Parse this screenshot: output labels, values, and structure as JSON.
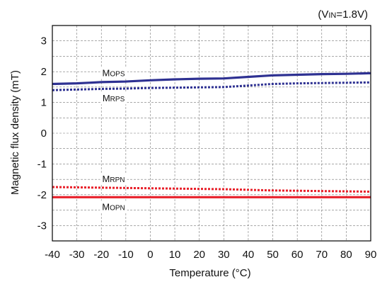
{
  "chart_data": {
    "type": "line",
    "condition": {
      "open": "(V",
      "sub": "IN",
      "close": "=1.8V)"
    },
    "xlabel": "Temperature (°C)",
    "ylabel": "Magnetic flux density (mT)",
    "xlim": [
      -40,
      90
    ],
    "ylim": [
      -3.5,
      3.5
    ],
    "xticks": [
      -40,
      -30,
      -20,
      -10,
      0,
      10,
      20,
      30,
      40,
      50,
      60,
      70,
      80,
      90
    ],
    "yticks": [
      3,
      2,
      1,
      0,
      -1,
      -2,
      -3
    ],
    "grid": true,
    "colors": {
      "blue": "#2e3192",
      "red": "#e8202a",
      "grid": "#777777"
    },
    "series": [
      {
        "name_main": "M",
        "name_sub": "OPS",
        "color": "#2e3192",
        "style": "solid",
        "label_side": "above",
        "label_x": -15,
        "x": [
          -40,
          -30,
          -20,
          -10,
          0,
          10,
          20,
          30,
          40,
          50,
          60,
          70,
          80,
          90
        ],
        "y": [
          1.6,
          1.62,
          1.66,
          1.68,
          1.72,
          1.75,
          1.77,
          1.78,
          1.83,
          1.88,
          1.9,
          1.92,
          1.93,
          1.95
        ]
      },
      {
        "name_main": "M",
        "name_sub": "RPS",
        "color": "#2e3192",
        "style": "dotted",
        "label_side": "below",
        "label_x": -15,
        "x": [
          -40,
          -30,
          -20,
          -10,
          0,
          10,
          20,
          30,
          40,
          50,
          60,
          70,
          80,
          90
        ],
        "y": [
          1.4,
          1.42,
          1.44,
          1.45,
          1.47,
          1.48,
          1.49,
          1.5,
          1.55,
          1.6,
          1.62,
          1.63,
          1.64,
          1.65
        ]
      },
      {
        "name_main": "M",
        "name_sub": "RPN",
        "color": "#e8202a",
        "style": "dotted",
        "label_side": "above",
        "label_x": -15,
        "x": [
          -40,
          -30,
          -20,
          -10,
          0,
          10,
          20,
          30,
          40,
          50,
          60,
          70,
          80,
          90
        ],
        "y": [
          -1.75,
          -1.76,
          -1.77,
          -1.78,
          -1.79,
          -1.8,
          -1.81,
          -1.82,
          -1.84,
          -1.86,
          -1.87,
          -1.88,
          -1.89,
          -1.9
        ]
      },
      {
        "name_main": "M",
        "name_sub": "OPN",
        "color": "#e8202a",
        "style": "solid",
        "label_side": "below",
        "label_x": -15,
        "x": [
          -40,
          -30,
          -20,
          -10,
          0,
          10,
          20,
          30,
          40,
          50,
          60,
          70,
          80,
          90
        ],
        "y": [
          -2.08,
          -2.08,
          -2.08,
          -2.08,
          -2.08,
          -2.08,
          -2.08,
          -2.08,
          -2.08,
          -2.08,
          -2.08,
          -2.08,
          -2.08,
          -2.08
        ]
      }
    ]
  }
}
